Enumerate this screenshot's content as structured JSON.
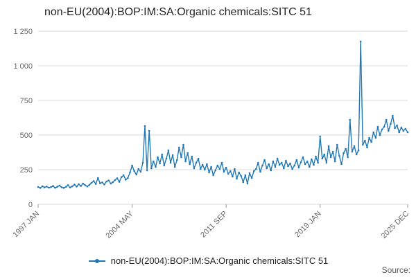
{
  "title": "non-EU(2004):BOP:IM:SA:Organic chemicals:SITC 51",
  "legend": {
    "label": "non-EU(2004):BOP:IM:SA:Organic chemicals:SITC 51"
  },
  "source_label": "Source:",
  "chart_data": {
    "type": "line",
    "title": "non-EU(2004):BOP:IM:SA:Organic chemicals:SITC 51",
    "series_name": "non-EU(2004):BOP:IM:SA:Organic chemicals:SITC 51",
    "line_color": "#1f77b4",
    "grid_color": "#d9d9d9",
    "tick_color": "#999999",
    "label_color": "#666666",
    "ylim": [
      0,
      1250
    ],
    "yticks": [
      0,
      250,
      500,
      750,
      1000,
      1250
    ],
    "ytick_labels": [
      "0",
      "250",
      "500",
      "750",
      "1 000",
      "1 250"
    ],
    "xtick_labels": [
      "1997 JAN",
      "2004 MAY",
      "2011 SEP",
      "2019 JAN",
      "2025 DEC"
    ],
    "xtick_positions": [
      0,
      44,
      88,
      132,
      173
    ],
    "x_range": [
      "1997 JAN",
      "2025 DEC"
    ],
    "legend_position": "bottom",
    "grid": "horizontal",
    "values": [
      125,
      118,
      130,
      122,
      128,
      120,
      124,
      132,
      119,
      127,
      135,
      123,
      118,
      126,
      138,
      121,
      130,
      142,
      128,
      145,
      132,
      150,
      138,
      129,
      140,
      155,
      168,
      147,
      190,
      152,
      158,
      143,
      165,
      172,
      150,
      160,
      175,
      188,
      162,
      196,
      210,
      178,
      190,
      230,
      280,
      240,
      215,
      255,
      235,
      300,
      565,
      245,
      530,
      260,
      310,
      270,
      340,
      295,
      360,
      280,
      330,
      390,
      300,
      355,
      270,
      320,
      410,
      340,
      430,
      310,
      370,
      290,
      345,
      260,
      300,
      330,
      255,
      285,
      250,
      290,
      230,
      270,
      210,
      245,
      280,
      255,
      300,
      235,
      265,
      220,
      240,
      200,
      255,
      185,
      230,
      205,
      160,
      210,
      150,
      225,
      190,
      240,
      255,
      300,
      235,
      280,
      320,
      260,
      290,
      245,
      310,
      270,
      330,
      285,
      300,
      260,
      315,
      275,
      295,
      255,
      280,
      320,
      265,
      305,
      340,
      290,
      310,
      270,
      325,
      285,
      345,
      300,
      490,
      330,
      360,
      300,
      420,
      340,
      380,
      310,
      430,
      350,
      290,
      370,
      400,
      340,
      610,
      380,
      420,
      360,
      390,
      1175,
      430,
      460,
      410,
      480,
      450,
      520,
      480,
      560,
      500,
      540,
      560,
      610,
      530,
      580,
      640,
      550,
      570,
      520,
      555,
      530,
      545,
      520
    ]
  }
}
